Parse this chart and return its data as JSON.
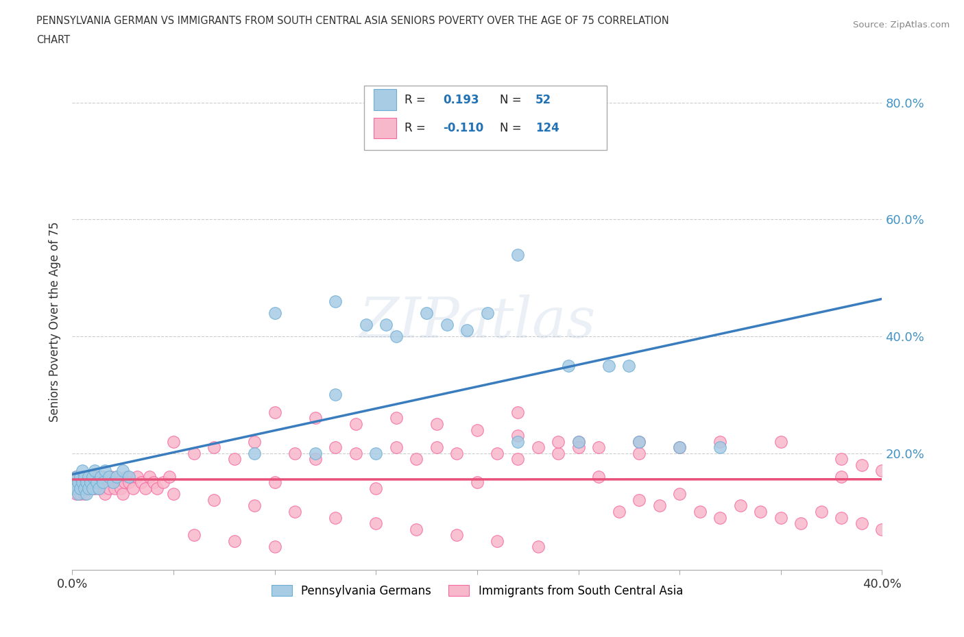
{
  "title_line1": "PENNSYLVANIA GERMAN VS IMMIGRANTS FROM SOUTH CENTRAL ASIA SENIORS POVERTY OVER THE AGE OF 75 CORRELATION",
  "title_line2": "CHART",
  "source": "Source: ZipAtlas.com",
  "ylabel": "Seniors Poverty Over the Age of 75",
  "xlim": [
    0.0,
    0.4
  ],
  "ylim": [
    0.0,
    0.85
  ],
  "xticks": [
    0.0,
    0.05,
    0.1,
    0.15,
    0.2,
    0.25,
    0.3,
    0.35,
    0.4
  ],
  "yticks": [
    0.0,
    0.2,
    0.4,
    0.6,
    0.8
  ],
  "blue_color": "#a8cce4",
  "blue_edge_color": "#6baed6",
  "pink_color": "#f7b8cb",
  "pink_edge_color": "#f768a1",
  "blue_line_color": "#3a7dbf",
  "pink_line_color": "#e8507a",
  "R_blue": 0.193,
  "N_blue": 52,
  "R_pink": -0.11,
  "N_pink": 124,
  "legend_label_blue": "Pennsylvania Germans",
  "legend_label_pink": "Immigrants from South Central Asia",
  "watermark": "ZIPatlas",
  "blue_scatter_x": [
    0.001,
    0.001,
    0.002,
    0.002,
    0.003,
    0.003,
    0.004,
    0.004,
    0.005,
    0.005,
    0.006,
    0.006,
    0.007,
    0.007,
    0.008,
    0.008,
    0.009,
    0.01,
    0.01,
    0.011,
    0.012,
    0.013,
    0.014,
    0.015,
    0.016,
    0.018,
    0.02,
    0.022,
    0.025,
    0.028,
    0.1,
    0.13,
    0.155,
    0.175,
    0.195,
    0.205,
    0.22,
    0.245,
    0.265,
    0.275,
    0.13,
    0.145,
    0.16,
    0.185,
    0.22,
    0.25,
    0.28,
    0.3,
    0.32,
    0.09,
    0.12,
    0.15
  ],
  "blue_scatter_y": [
    0.14,
    0.15,
    0.14,
    0.16,
    0.15,
    0.13,
    0.16,
    0.14,
    0.15,
    0.17,
    0.14,
    0.16,
    0.15,
    0.13,
    0.16,
    0.14,
    0.15,
    0.16,
    0.14,
    0.17,
    0.15,
    0.14,
    0.16,
    0.15,
    0.17,
    0.16,
    0.15,
    0.16,
    0.17,
    0.16,
    0.44,
    0.46,
    0.42,
    0.44,
    0.41,
    0.44,
    0.54,
    0.35,
    0.35,
    0.35,
    0.3,
    0.42,
    0.4,
    0.42,
    0.22,
    0.22,
    0.22,
    0.21,
    0.21,
    0.2,
    0.2,
    0.2
  ],
  "pink_scatter_x": [
    0.001,
    0.001,
    0.002,
    0.002,
    0.003,
    0.003,
    0.003,
    0.004,
    0.004,
    0.005,
    0.005,
    0.005,
    0.006,
    0.006,
    0.007,
    0.007,
    0.008,
    0.008,
    0.009,
    0.009,
    0.01,
    0.01,
    0.011,
    0.011,
    0.012,
    0.012,
    0.013,
    0.013,
    0.014,
    0.014,
    0.015,
    0.015,
    0.016,
    0.016,
    0.017,
    0.018,
    0.019,
    0.02,
    0.021,
    0.022,
    0.023,
    0.024,
    0.025,
    0.026,
    0.027,
    0.028,
    0.03,
    0.032,
    0.034,
    0.036,
    0.038,
    0.04,
    0.042,
    0.045,
    0.048,
    0.05,
    0.06,
    0.07,
    0.08,
    0.09,
    0.1,
    0.11,
    0.12,
    0.13,
    0.14,
    0.15,
    0.16,
    0.17,
    0.18,
    0.19,
    0.2,
    0.21,
    0.22,
    0.23,
    0.24,
    0.25,
    0.26,
    0.27,
    0.28,
    0.29,
    0.3,
    0.31,
    0.32,
    0.33,
    0.34,
    0.35,
    0.36,
    0.37,
    0.38,
    0.39,
    0.4,
    0.28,
    0.3,
    0.32,
    0.35,
    0.38,
    0.39,
    0.4,
    0.22,
    0.25,
    0.1,
    0.12,
    0.14,
    0.16,
    0.18,
    0.2,
    0.22,
    0.24,
    0.26,
    0.28,
    0.05,
    0.07,
    0.09,
    0.11,
    0.13,
    0.15,
    0.17,
    0.19,
    0.21,
    0.23,
    0.06,
    0.08,
    0.1,
    0.38
  ],
  "pink_scatter_y": [
    0.15,
    0.14,
    0.16,
    0.13,
    0.15,
    0.14,
    0.16,
    0.15,
    0.13,
    0.16,
    0.14,
    0.15,
    0.16,
    0.13,
    0.15,
    0.14,
    0.16,
    0.14,
    0.15,
    0.16,
    0.14,
    0.15,
    0.16,
    0.14,
    0.15,
    0.16,
    0.14,
    0.15,
    0.16,
    0.15,
    0.14,
    0.16,
    0.15,
    0.13,
    0.15,
    0.14,
    0.16,
    0.15,
    0.14,
    0.16,
    0.15,
    0.14,
    0.13,
    0.15,
    0.16,
    0.15,
    0.14,
    0.16,
    0.15,
    0.14,
    0.16,
    0.15,
    0.14,
    0.15,
    0.16,
    0.22,
    0.2,
    0.21,
    0.19,
    0.22,
    0.15,
    0.2,
    0.19,
    0.21,
    0.2,
    0.14,
    0.21,
    0.19,
    0.21,
    0.2,
    0.15,
    0.2,
    0.19,
    0.21,
    0.2,
    0.22,
    0.16,
    0.1,
    0.12,
    0.11,
    0.13,
    0.1,
    0.09,
    0.11,
    0.1,
    0.09,
    0.08,
    0.1,
    0.09,
    0.08,
    0.07,
    0.22,
    0.21,
    0.22,
    0.22,
    0.19,
    0.18,
    0.17,
    0.27,
    0.21,
    0.27,
    0.26,
    0.25,
    0.26,
    0.25,
    0.24,
    0.23,
    0.22,
    0.21,
    0.2,
    0.13,
    0.12,
    0.11,
    0.1,
    0.09,
    0.08,
    0.07,
    0.06,
    0.05,
    0.04,
    0.06,
    0.05,
    0.04,
    0.16
  ]
}
